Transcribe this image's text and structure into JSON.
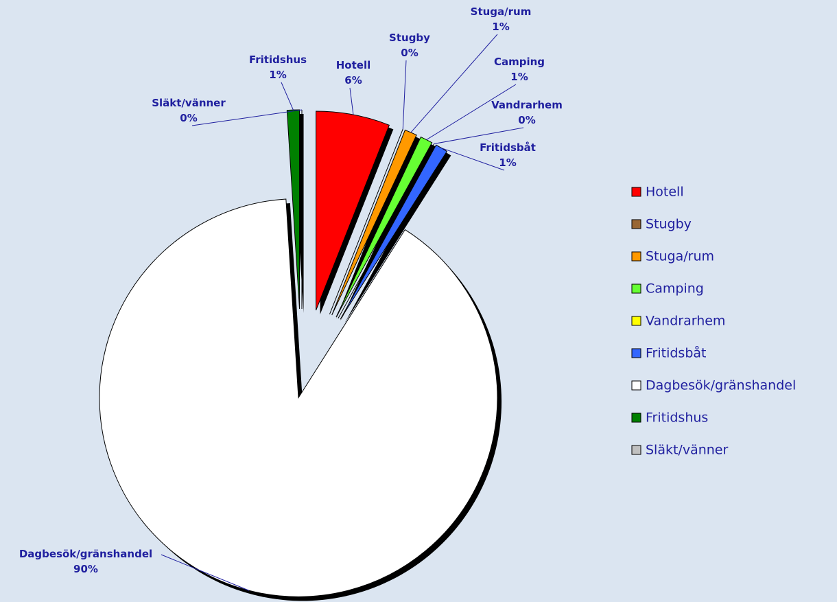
{
  "chart_data": {
    "type": "pie",
    "categories": [
      "Hotell",
      "Stugby",
      "Stuga/rum",
      "Camping",
      "Vandrarhem",
      "Fritidsbåt",
      "Dagbesök/gränshandel",
      "Fritidshus",
      "Släkt/vänner"
    ],
    "values": [
      6,
      0,
      1,
      1,
      0,
      1,
      90,
      1,
      0
    ],
    "value_labels": [
      "6%",
      "0%",
      "1%",
      "1%",
      "0%",
      "1%",
      "90%",
      "1%",
      "0%"
    ],
    "colors": [
      "#ff0000",
      "#996633",
      "#ff9900",
      "#66ff33",
      "#ffff00",
      "#3366ff",
      "#ffffff",
      "#008000",
      "#c0c0c0"
    ],
    "legend": "right"
  }
}
